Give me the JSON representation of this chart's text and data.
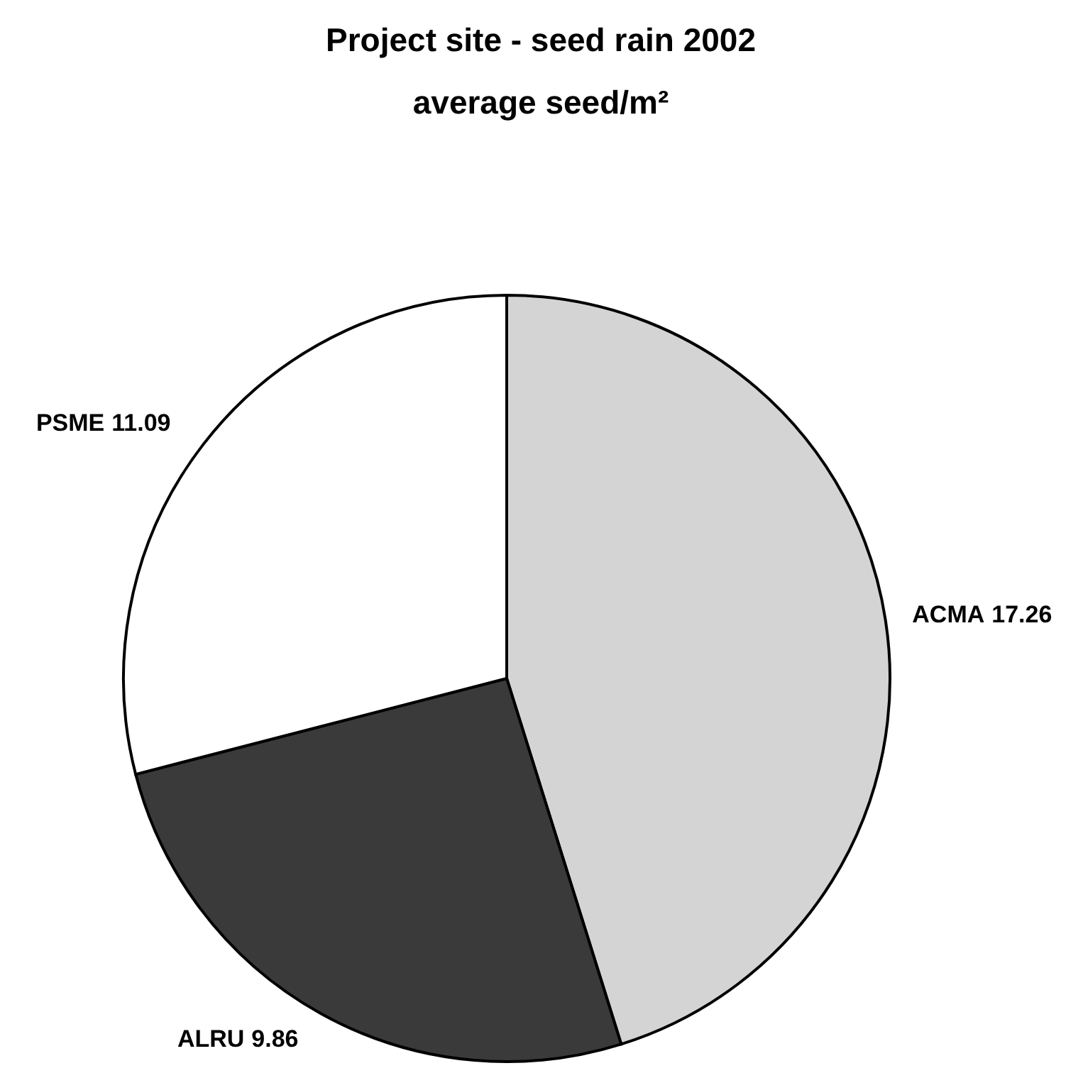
{
  "chart_data": {
    "type": "pie",
    "title": "Project site - seed rain 2002",
    "subtitle": "average seed/m²",
    "categories": [
      "ACMA",
      "ALRU",
      "PSME"
    ],
    "values": [
      17.26,
      9.86,
      11.09
    ],
    "colors": [
      "#d4d4d4",
      "#3a3a3a",
      "#ffffff"
    ],
    "data_labels": true
  }
}
